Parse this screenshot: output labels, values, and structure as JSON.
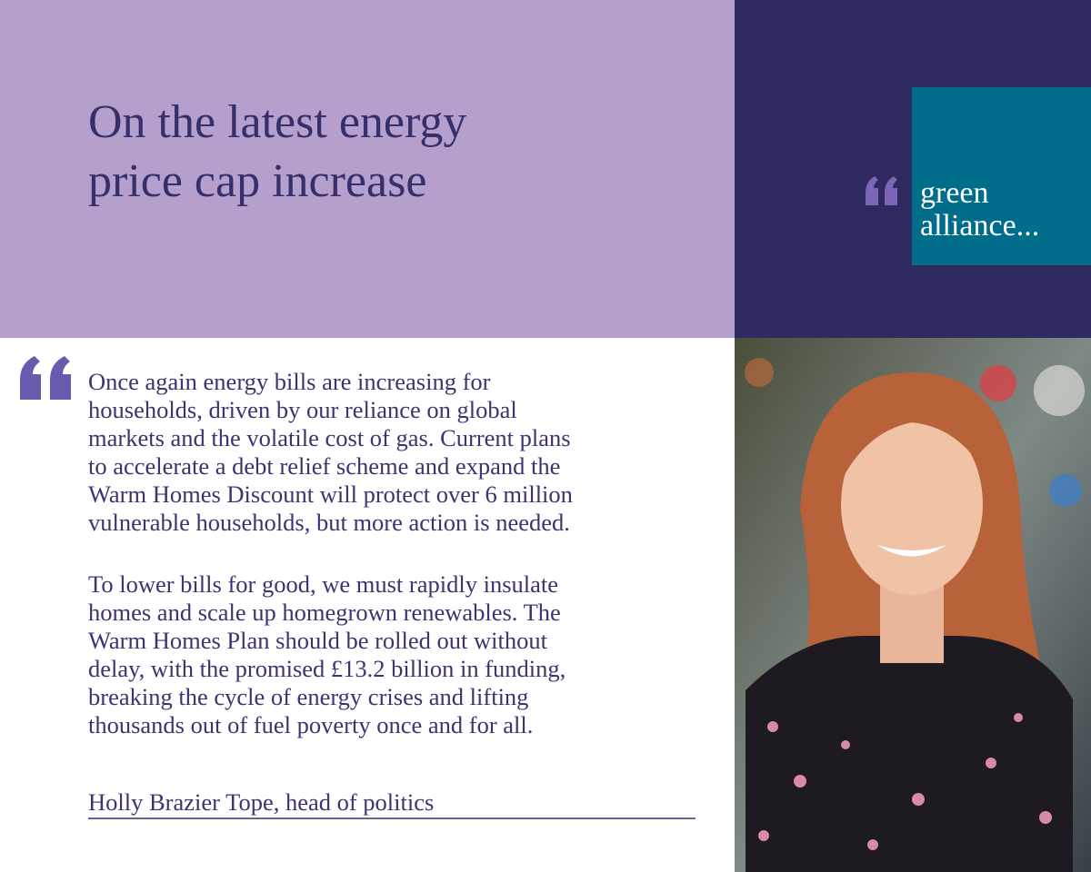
{
  "header": {
    "title_lines": [
      "On the latest energy",
      "price cap increase"
    ]
  },
  "logo": {
    "lines": [
      "green",
      "alliance..."
    ]
  },
  "quote": {
    "paragraphs": [
      [
        "Once again energy bills are increasing for",
        "households, driven by our reliance on global",
        "markets and the volatile cost of gas. Current plans",
        "to accelerate a debt relief scheme and expand the",
        "Warm Homes Discount will protect over 6 million",
        "vulnerable households, but more action is needed."
      ],
      [
        "To lower bills for good, we must rapidly insulate",
        "homes and scale up homegrown renewables. The",
        "Warm Homes Plan should be rolled out without",
        "delay, with the promised £13.2 billion in funding,",
        "breaking the cycle of energy crises and lifting",
        "thousands out of fuel poverty once and for all."
      ]
    ],
    "attribution": "Holly Brazier Tope, head of politics"
  }
}
